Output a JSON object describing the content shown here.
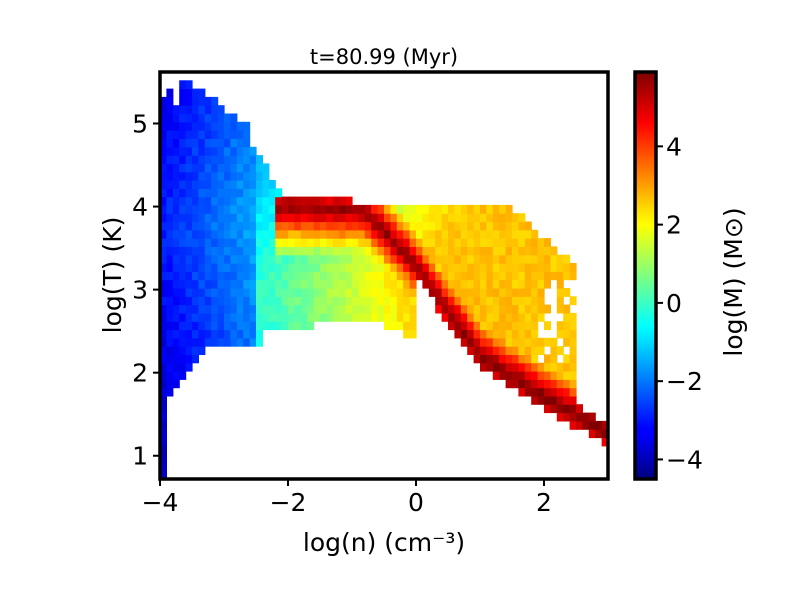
{
  "chart_data": {
    "type": "heatmap",
    "title": "t=80.99 (Myr)",
    "xlabel": "log(n) (cm⁻³)",
    "ylabel": "log(T) (K)",
    "xlim": [
      -4,
      3
    ],
    "ylim": [
      0.72,
      5.62
    ],
    "x_ticks": [
      -4,
      -2,
      0,
      2
    ],
    "x_tick_labels": [
      "−4",
      "−2",
      "0",
      "2"
    ],
    "y_ticks": [
      1,
      2,
      3,
      4,
      5
    ],
    "y_tick_labels": [
      "1",
      "2",
      "3",
      "4",
      "5"
    ],
    "colorbar": {
      "label": "log(M) (M⊙)",
      "range": [
        -4.5,
        5.9
      ],
      "ticks": [
        -4,
        -2,
        0,
        2,
        4
      ],
      "tick_labels": [
        "−4",
        "−2",
        "0",
        "2",
        "4"
      ],
      "colormap": "jet"
    },
    "grid": false,
    "bins": {
      "nx": 70,
      "ny": 49,
      "dx": 0.1,
      "dy": 0.1
    },
    "features": [
      {
        "name": "hot diffuse gas",
        "log_n_range": [
          -4,
          -2
        ],
        "log_T_range": [
          2.0,
          5.6
        ],
        "log_M_range": [
          -4.5,
          -1.5
        ]
      },
      {
        "name": "warm plateau",
        "log_n_range": [
          -2.8,
          2.5
        ],
        "log_T_range": [
          2.4,
          4.1
        ],
        "log_M_range": [
          -1,
          3
        ]
      },
      {
        "name": "equilibrium ridge",
        "points": [
          [
            -2.0,
            4.0
          ],
          [
            -0.8,
            3.95
          ],
          [
            0,
            3.3
          ],
          [
            1,
            2.2
          ],
          [
            2,
            1.7
          ],
          [
            3,
            1.3
          ]
        ],
        "log_M_peak": 5.8
      }
    ]
  }
}
